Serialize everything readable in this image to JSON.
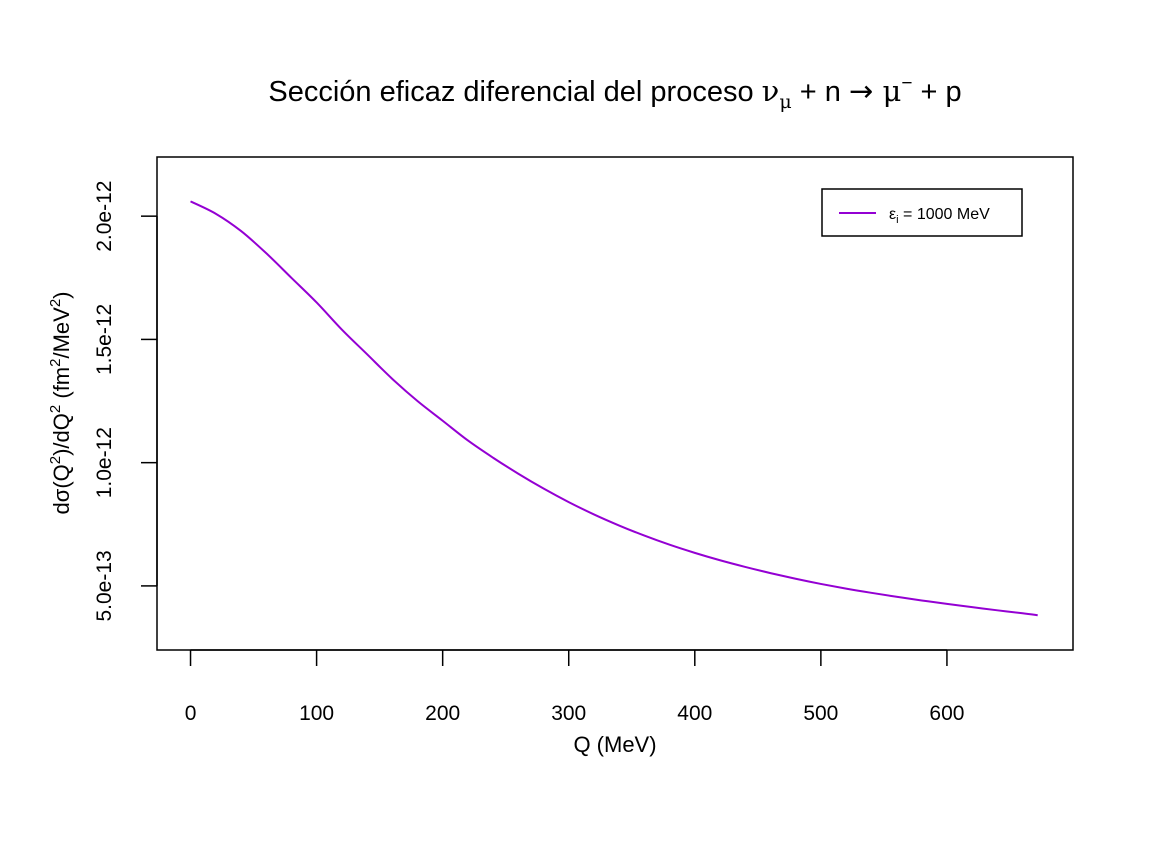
{
  "chart_data": {
    "type": "line",
    "title_parts": {
      "prefix": "Sección  eficaz  diferencial  del  proceso  ",
      "nu": "ν",
      "nu_sub": "μ",
      "plus1": " + n ",
      "arrow": "→",
      "mu": " μ",
      "mu_sup": "−",
      "plus2": " + p"
    },
    "xlabel": "Q  (MeV)",
    "ylabel_parts": {
      "a": "dσ(Q",
      "a_sup": "2",
      "b": ")/dQ",
      "b_sup": "2",
      "c": "  (fm",
      "c_sup": "2",
      "d": "/MeV",
      "d_sup": "2",
      "e": ")"
    },
    "xlim": [
      -26.6,
      700
    ],
    "ylim": [
      2.4e-13,
      2.24e-12
    ],
    "x_ticks": [
      0,
      100,
      200,
      300,
      400,
      500,
      600
    ],
    "x_tick_labels": [
      "0",
      "100",
      "200",
      "300",
      "400",
      "500",
      "600"
    ],
    "y_ticks": [
      5e-13,
      1e-12,
      1.5e-12,
      2e-12
    ],
    "y_tick_labels": [
      "5.0e-13",
      "1.0e-12",
      "1.5e-12",
      "2.0e-12"
    ],
    "grid": false,
    "legend_position": "top-right",
    "series": [
      {
        "name_parts": {
          "eps": "ε",
          "sub": "i",
          "rest": " = 1000  MeV"
        },
        "color": "#9400D3",
        "x": [
          0,
          20,
          40,
          60,
          80,
          100,
          120,
          140,
          160,
          180,
          200,
          220,
          240,
          260,
          280,
          300,
          320,
          340,
          360,
          380,
          400,
          420,
          440,
          460,
          480,
          500,
          520,
          540,
          560,
          580,
          600,
          620,
          640,
          660,
          672
        ],
        "y": [
          2.06e-12,
          2.01e-12,
          1.94e-12,
          1.85e-12,
          1.75e-12,
          1.65e-12,
          1.54e-12,
          1.44e-12,
          1.34e-12,
          1.25e-12,
          1.17e-12,
          1.09e-12,
          1.02e-12,
          9.55e-13,
          8.95e-13,
          8.4e-13,
          7.9e-13,
          7.45e-13,
          7.04e-13,
          6.67e-13,
          6.34e-13,
          6.04e-13,
          5.77e-13,
          5.52e-13,
          5.29e-13,
          5.08e-13,
          4.89e-13,
          4.72e-13,
          4.56e-13,
          4.41e-13,
          4.27e-13,
          4.14e-13,
          4.01e-13,
          3.89e-13,
          3.81e-13
        ]
      }
    ]
  }
}
